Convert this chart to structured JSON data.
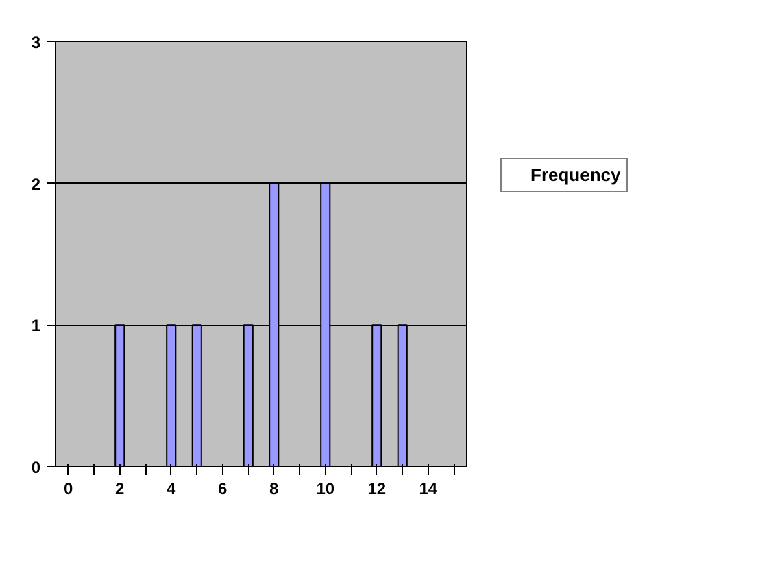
{
  "chart_data": {
    "type": "bar",
    "categories": [
      "0",
      null,
      "2",
      null,
      "4",
      null,
      "6",
      null,
      "8",
      null,
      "10",
      null,
      "12",
      null,
      "14",
      null
    ],
    "series": [
      {
        "name": "Frequency",
        "color": "#9999ff",
        "values": [
          0,
          0,
          1,
          0,
          1,
          1,
          0,
          1,
          2,
          0,
          2,
          0,
          1,
          1,
          0,
          0
        ]
      }
    ],
    "ylim": [
      0,
      3
    ],
    "yticks": [
      0,
      1,
      2,
      3
    ],
    "grid": "y",
    "legend": "right"
  }
}
